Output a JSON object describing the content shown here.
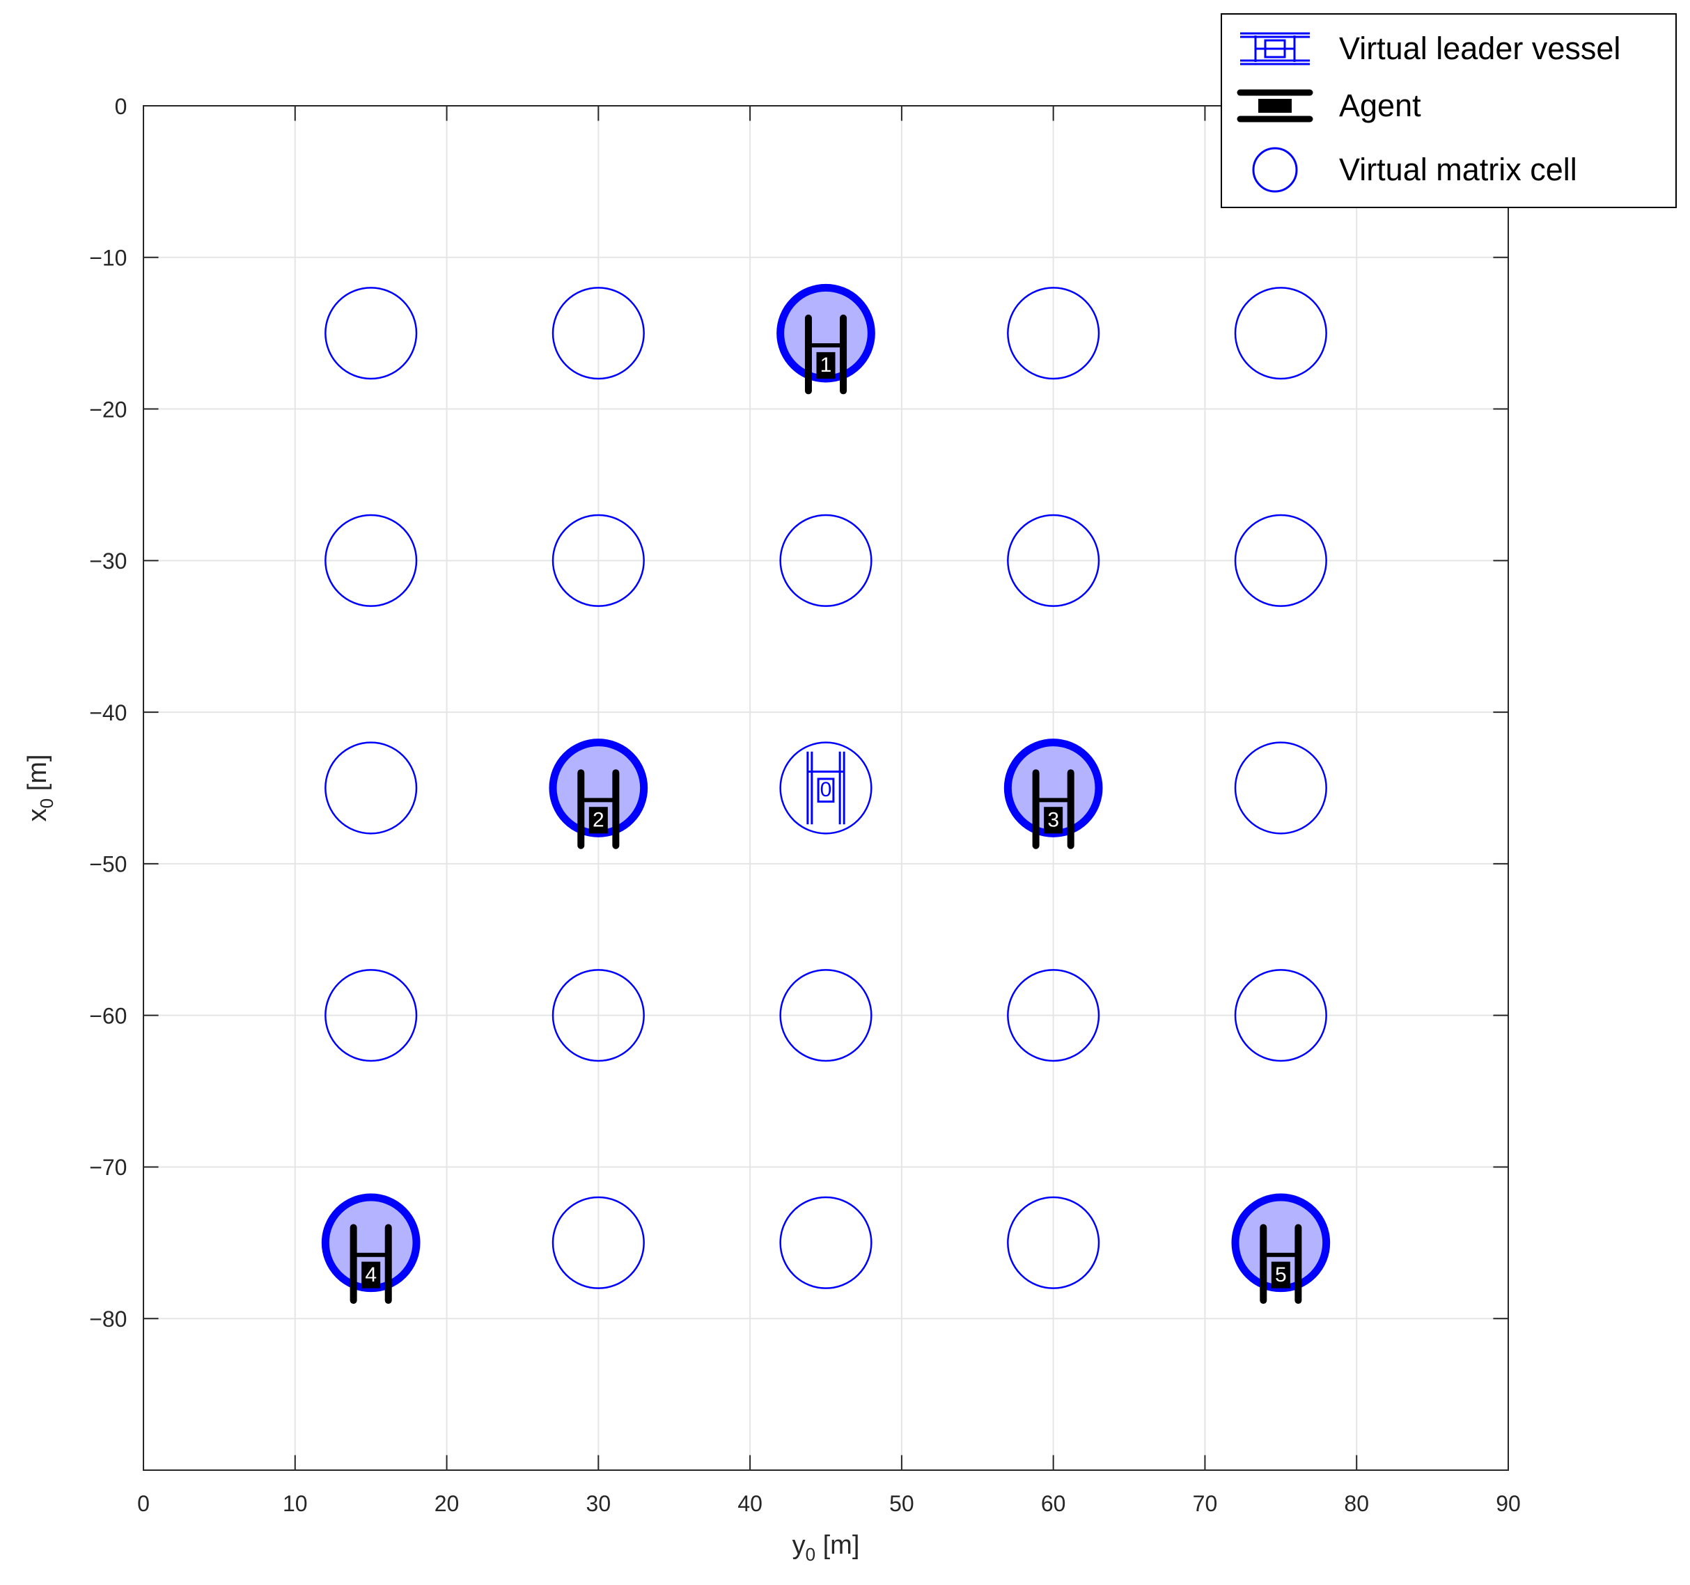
{
  "colors": {
    "cell_stroke": "#0000ff",
    "occupied_fill": "#b3b3ff",
    "agent": "#000000",
    "grid": "#e5e5e5",
    "axis": "#262626"
  },
  "chart_data": {
    "type": "scatter",
    "title": "",
    "xlabel": {
      "base": "y",
      "sub": "0",
      "unit": " [m]"
    },
    "ylabel": {
      "base": "x",
      "sub": "0",
      "unit": " [m]"
    },
    "xlim": [
      0,
      90
    ],
    "ylim": [
      -90,
      0
    ],
    "xticks": [
      0,
      10,
      20,
      30,
      40,
      50,
      60,
      70,
      80,
      90
    ],
    "yticks": [
      0,
      -10,
      -20,
      -30,
      -40,
      -50,
      -60,
      -70,
      -80
    ],
    "grid": true,
    "legend_position": "top-right",
    "legend": [
      {
        "label": "Virtual leader vessel",
        "icon": "leader-vessel-icon"
      },
      {
        "label": "Agent",
        "icon": "agent-vessel-icon"
      },
      {
        "label": "Virtual matrix cell",
        "icon": "circle-icon"
      }
    ],
    "cell_columns_y": [
      15,
      30,
      45,
      60,
      75
    ],
    "cell_rows_x": [
      -15,
      -30,
      -45,
      -60,
      -75
    ],
    "cell_radius": 3,
    "leader": {
      "y": 45,
      "x": -45,
      "label": "0"
    },
    "agents": [
      {
        "y": 45,
        "x": -15,
        "label": "1"
      },
      {
        "y": 30,
        "x": -45,
        "label": "2"
      },
      {
        "y": 60,
        "x": -45,
        "label": "3"
      },
      {
        "y": 15,
        "x": -75,
        "label": "4"
      },
      {
        "y": 75,
        "x": -75,
        "label": "5"
      }
    ]
  }
}
